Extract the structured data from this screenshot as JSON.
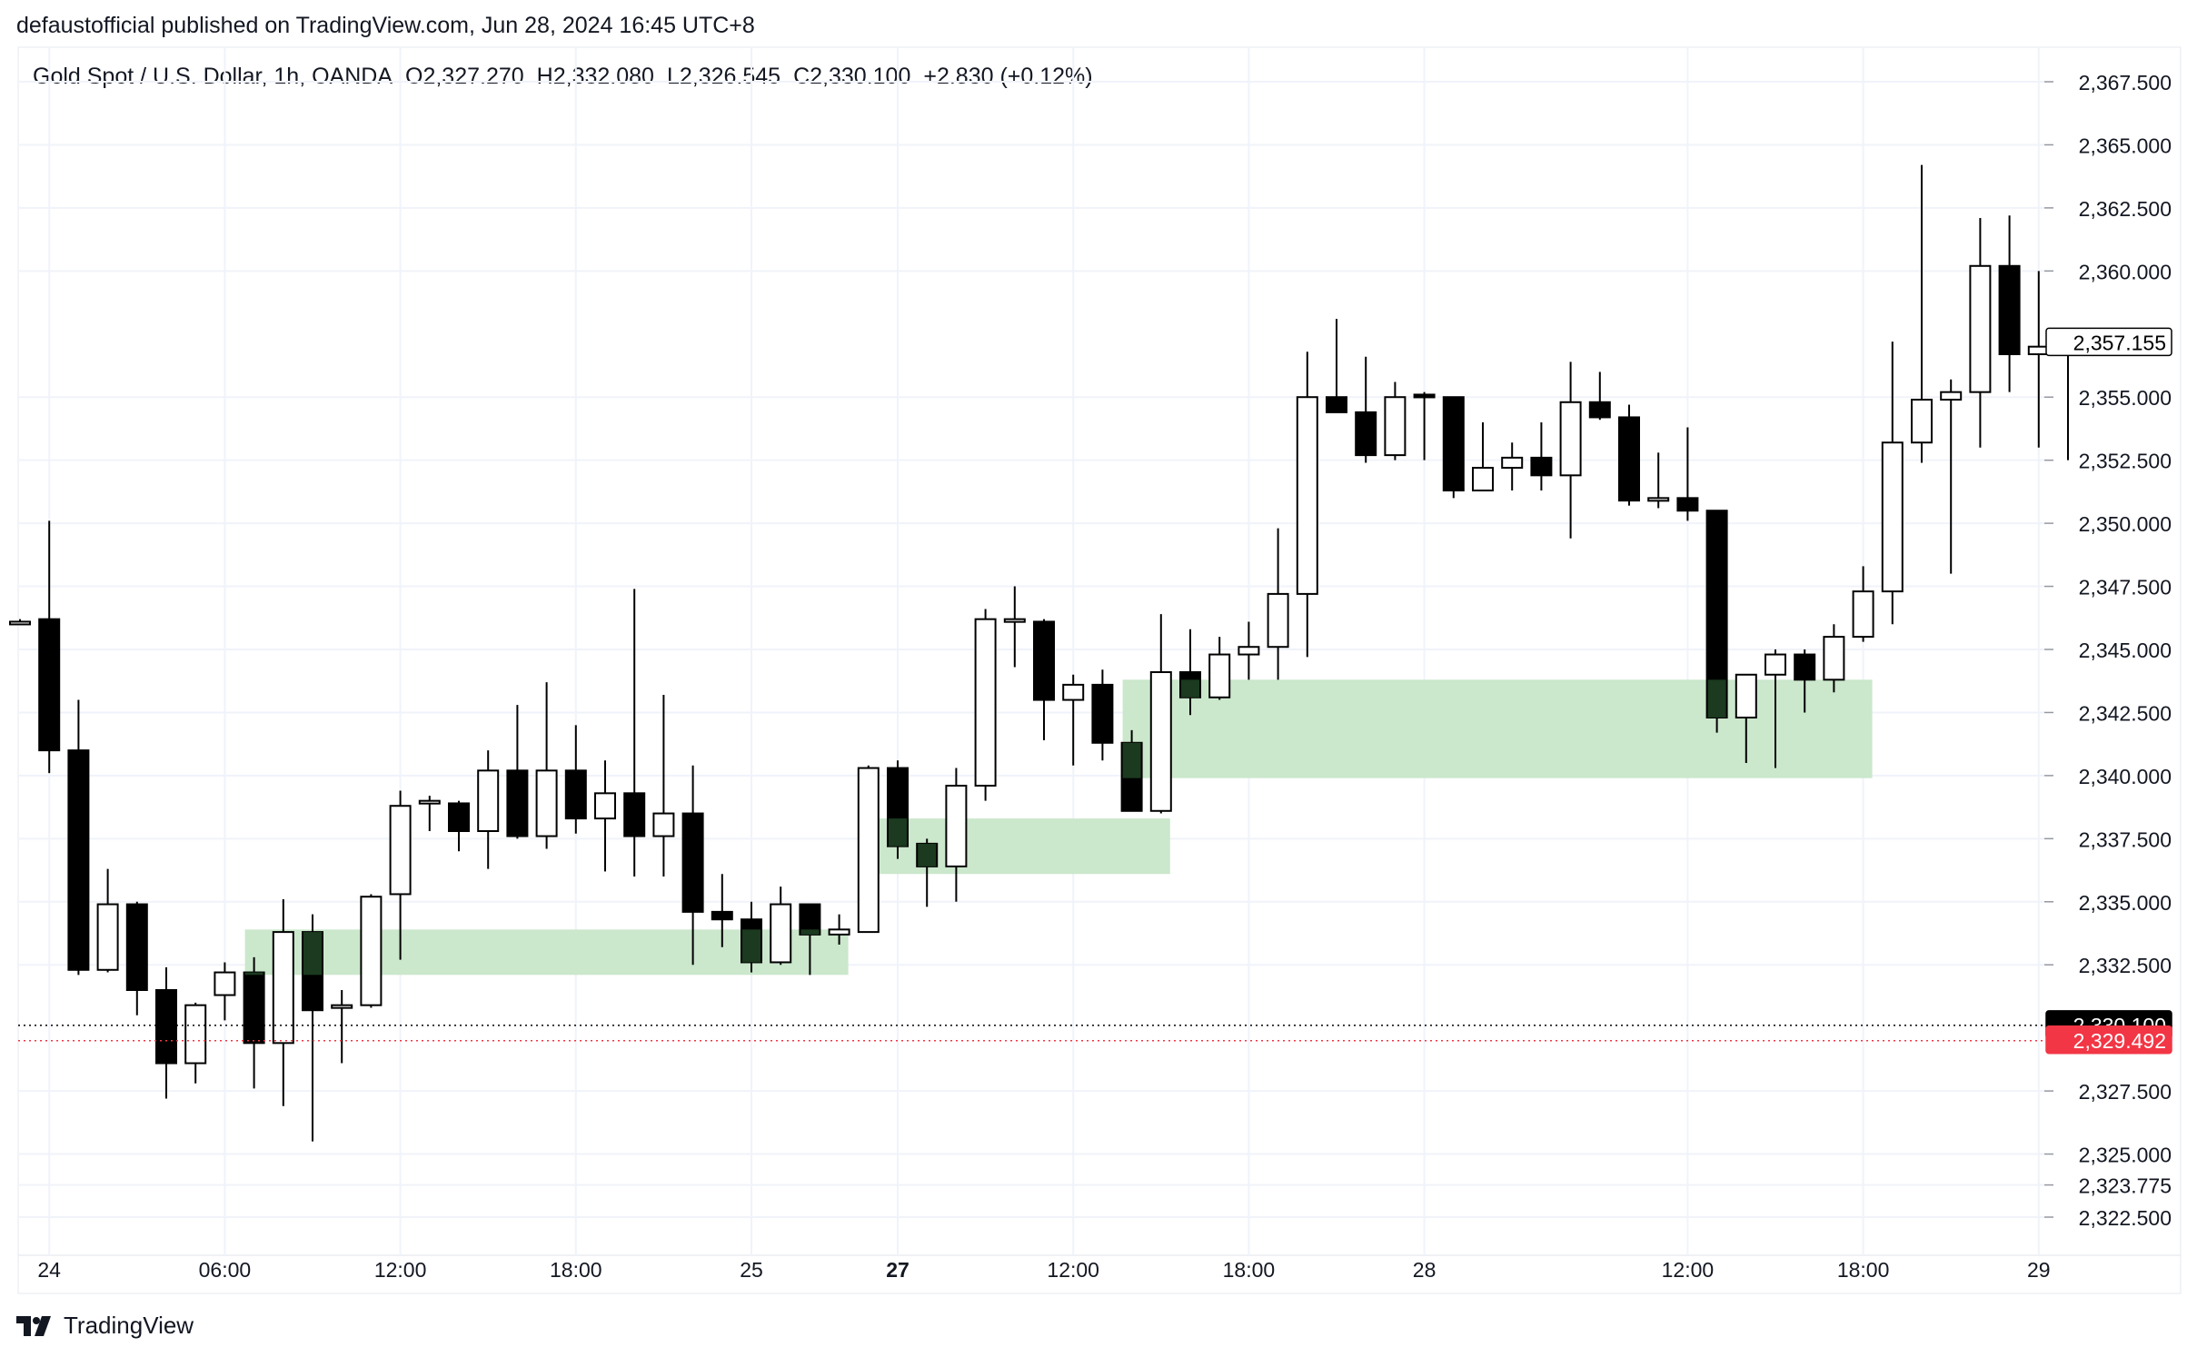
{
  "header": {
    "published_by": "defaustofficial published on TradingView.com, Jun 28, 2024 16:45 UTC+8"
  },
  "symbol_line": {
    "name": "Gold Spot / U.S. Dollar, 1h, OANDA",
    "open": "O2,327.270",
    "high": "H2,332.080",
    "low": "L2,326.545",
    "close": "C2,330.100",
    "change": "+2.830 (+0.12%)"
  },
  "brand": {
    "label": "TradingView",
    "icon": "tradingview-logo-icon"
  },
  "colors": {
    "bull_body": "#ffffff",
    "bear_body": "#000000",
    "zone_fill": "#c8e6c9",
    "zone_overlap": "#1b3a1f",
    "grid": "#f0f3fa",
    "price_label_red": "#f23645"
  },
  "chart_data": {
    "type": "candlestick",
    "y_axis": {
      "ylim": [
        2321.5,
        2369
      ],
      "ticks": [
        "2,367.500",
        "2,365.000",
        "2,362.500",
        "2,360.000",
        "2,355.000",
        "2,352.500",
        "2,350.000",
        "2,347.500",
        "2,345.000",
        "2,342.500",
        "2,340.000",
        "2,337.500",
        "2,335.000",
        "2,332.500",
        "2,327.500",
        "2,325.000",
        "2,323.775",
        "2,322.500"
      ],
      "tick_values": [
        2367.5,
        2365,
        2362.5,
        2360,
        2355,
        2352.5,
        2350,
        2347.5,
        2345,
        2342.5,
        2340,
        2337.5,
        2335,
        2332.5,
        2327.5,
        2325,
        2323.775,
        2322.5
      ]
    },
    "x_axis": {
      "labels": [
        {
          "text": "24",
          "index": 1,
          "bold": false
        },
        {
          "text": "06:00",
          "index": 7,
          "bold": false
        },
        {
          "text": "12:00",
          "index": 13,
          "bold": false
        },
        {
          "text": "18:00",
          "index": 19,
          "bold": false
        },
        {
          "text": "25",
          "index": 25,
          "bold": false
        },
        {
          "text": "27",
          "index": 30,
          "bold": true
        },
        {
          "text": "12:00",
          "index": 36,
          "bold": false
        },
        {
          "text": "18:00",
          "index": 42,
          "bold": false
        },
        {
          "text": "28",
          "index": 48,
          "bold": false
        },
        {
          "text": "12:00",
          "index": 57,
          "bold": false
        },
        {
          "text": "18:00",
          "index": 63,
          "bold": false
        },
        {
          "text": "29",
          "index": 69,
          "bold": false
        }
      ]
    },
    "candles": [
      {
        "i": 0,
        "o": 2346.1,
        "h": 2346.2,
        "l": 2346.0,
        "c": 2346.1
      },
      {
        "i": 1,
        "o": 2346.2,
        "h": 2350.1,
        "l": 2340.1,
        "c": 2341.0
      },
      {
        "i": 2,
        "o": 2341.0,
        "h": 2343.0,
        "l": 2332.1,
        "c": 2332.3
      },
      {
        "i": 3,
        "o": 2332.3,
        "h": 2336.3,
        "l": 2332.2,
        "c": 2334.9
      },
      {
        "i": 4,
        "o": 2334.9,
        "h": 2335.0,
        "l": 2330.5,
        "c": 2331.5
      },
      {
        "i": 5,
        "o": 2331.5,
        "h": 2332.4,
        "l": 2327.2,
        "c": 2328.6
      },
      {
        "i": 6,
        "o": 2328.6,
        "h": 2331.0,
        "l": 2327.8,
        "c": 2330.9
      },
      {
        "i": 7,
        "o": 2331.3,
        "h": 2332.6,
        "l": 2330.3,
        "c": 2332.2
      },
      {
        "i": 8,
        "o": 2332.2,
        "h": 2332.8,
        "l": 2327.6,
        "c": 2329.4
      },
      {
        "i": 9,
        "o": 2329.4,
        "h": 2335.1,
        "l": 2326.9,
        "c": 2333.8
      },
      {
        "i": 10,
        "o": 2333.8,
        "h": 2334.5,
        "l": 2325.5,
        "c": 2330.7
      },
      {
        "i": 11,
        "o": 2330.8,
        "h": 2331.5,
        "l": 2328.6,
        "c": 2330.9
      },
      {
        "i": 12,
        "o": 2330.9,
        "h": 2335.3,
        "l": 2330.8,
        "c": 2335.2
      },
      {
        "i": 13,
        "o": 2335.3,
        "h": 2339.4,
        "l": 2332.7,
        "c": 2338.8
      },
      {
        "i": 14,
        "o": 2338.9,
        "h": 2339.2,
        "l": 2337.8,
        "c": 2339.0
      },
      {
        "i": 15,
        "o": 2338.9,
        "h": 2339.0,
        "l": 2337.0,
        "c": 2337.8
      },
      {
        "i": 16,
        "o": 2337.8,
        "h": 2341.0,
        "l": 2336.3,
        "c": 2340.2
      },
      {
        "i": 17,
        "o": 2340.2,
        "h": 2342.8,
        "l": 2337.5,
        "c": 2337.6
      },
      {
        "i": 18,
        "o": 2337.6,
        "h": 2343.7,
        "l": 2337.1,
        "c": 2340.2
      },
      {
        "i": 19,
        "o": 2340.2,
        "h": 2342.0,
        "l": 2337.7,
        "c": 2338.3
      },
      {
        "i": 20,
        "o": 2338.3,
        "h": 2340.6,
        "l": 2336.2,
        "c": 2339.3
      },
      {
        "i": 21,
        "o": 2339.3,
        "h": 2347.4,
        "l": 2336.0,
        "c": 2337.6
      },
      {
        "i": 22,
        "o": 2337.6,
        "h": 2343.2,
        "l": 2336.0,
        "c": 2338.5
      },
      {
        "i": 23,
        "o": 2338.5,
        "h": 2340.4,
        "l": 2332.5,
        "c": 2334.6
      },
      {
        "i": 24,
        "o": 2334.6,
        "h": 2336.1,
        "l": 2333.2,
        "c": 2334.3
      },
      {
        "i": 25,
        "o": 2334.3,
        "h": 2335.0,
        "l": 2332.2,
        "c": 2332.6
      },
      {
        "i": 26,
        "o": 2332.6,
        "h": 2335.6,
        "l": 2332.5,
        "c": 2334.9
      },
      {
        "i": 27,
        "o": 2334.9,
        "h": 2334.9,
        "l": 2332.1,
        "c": 2333.7
      },
      {
        "i": 28,
        "o": 2333.7,
        "h": 2334.5,
        "l": 2333.3,
        "c": 2333.9
      },
      {
        "i": 29,
        "o": 2333.8,
        "h": 2340.4,
        "l": 2333.8,
        "c": 2340.3
      },
      {
        "i": 30,
        "o": 2340.3,
        "h": 2340.6,
        "l": 2336.7,
        "c": 2337.2
      },
      {
        "i": 31,
        "o": 2337.3,
        "h": 2337.5,
        "l": 2334.8,
        "c": 2336.4
      },
      {
        "i": 32,
        "o": 2336.4,
        "h": 2340.3,
        "l": 2335.0,
        "c": 2339.6
      },
      {
        "i": 33,
        "o": 2339.6,
        "h": 2346.6,
        "l": 2339.0,
        "c": 2346.2
      },
      {
        "i": 34,
        "o": 2346.1,
        "h": 2347.5,
        "l": 2344.3,
        "c": 2346.2
      },
      {
        "i": 35,
        "o": 2346.1,
        "h": 2346.2,
        "l": 2341.4,
        "c": 2343.0
      },
      {
        "i": 36,
        "o": 2343.0,
        "h": 2344.0,
        "l": 2340.4,
        "c": 2343.6
      },
      {
        "i": 37,
        "o": 2343.6,
        "h": 2344.2,
        "l": 2340.6,
        "c": 2341.3
      },
      {
        "i": 38,
        "o": 2341.3,
        "h": 2341.8,
        "l": 2338.8,
        "c": 2338.6
      },
      {
        "i": 39,
        "o": 2338.6,
        "h": 2346.4,
        "l": 2338.5,
        "c": 2344.1
      },
      {
        "i": 40,
        "o": 2344.1,
        "h": 2345.8,
        "l": 2342.4,
        "c": 2343.1
      },
      {
        "i": 41,
        "o": 2343.1,
        "h": 2345.5,
        "l": 2343.0,
        "c": 2344.8
      },
      {
        "i": 42,
        "o": 2344.8,
        "h": 2346.1,
        "l": 2343.8,
        "c": 2345.1
      },
      {
        "i": 43,
        "o": 2345.1,
        "h": 2349.8,
        "l": 2343.8,
        "c": 2347.2
      },
      {
        "i": 44,
        "o": 2347.2,
        "h": 2356.8,
        "l": 2344.7,
        "c": 2355.0
      },
      {
        "i": 45,
        "o": 2355.0,
        "h": 2358.1,
        "l": 2354.4,
        "c": 2354.4
      },
      {
        "i": 46,
        "o": 2354.4,
        "h": 2356.6,
        "l": 2352.4,
        "c": 2352.7
      },
      {
        "i": 47,
        "o": 2352.7,
        "h": 2355.6,
        "l": 2352.5,
        "c": 2355.0
      },
      {
        "i": 48,
        "o": 2355.1,
        "h": 2355.2,
        "l": 2352.5,
        "c": 2355.0
      },
      {
        "i": 49,
        "o": 2355.0,
        "h": 2355.0,
        "l": 2351.0,
        "c": 2351.3
      },
      {
        "i": 50,
        "o": 2351.3,
        "h": 2354.0,
        "l": 2351.3,
        "c": 2352.2
      },
      {
        "i": 51,
        "o": 2352.2,
        "h": 2353.2,
        "l": 2351.3,
        "c": 2352.6
      },
      {
        "i": 52,
        "o": 2352.6,
        "h": 2354.0,
        "l": 2351.3,
        "c": 2351.9
      },
      {
        "i": 53,
        "o": 2351.9,
        "h": 2356.4,
        "l": 2349.4,
        "c": 2354.8
      },
      {
        "i": 54,
        "o": 2354.8,
        "h": 2356.0,
        "l": 2354.1,
        "c": 2354.2
      },
      {
        "i": 55,
        "o": 2354.2,
        "h": 2354.7,
        "l": 2350.7,
        "c": 2350.9
      },
      {
        "i": 56,
        "o": 2350.9,
        "h": 2352.8,
        "l": 2350.6,
        "c": 2351.0
      },
      {
        "i": 57,
        "o": 2351.0,
        "h": 2353.8,
        "l": 2350.1,
        "c": 2350.5
      },
      {
        "i": 58,
        "o": 2350.5,
        "h": 2350.5,
        "l": 2341.7,
        "c": 2342.3
      },
      {
        "i": 59,
        "o": 2342.3,
        "h": 2344.0,
        "l": 2340.5,
        "c": 2344.0
      },
      {
        "i": 60,
        "o": 2344.0,
        "h": 2345.0,
        "l": 2340.3,
        "c": 2344.8
      },
      {
        "i": 61,
        "o": 2344.8,
        "h": 2345.0,
        "l": 2342.5,
        "c": 2343.8
      },
      {
        "i": 62,
        "o": 2343.8,
        "h": 2346.0,
        "l": 2343.3,
        "c": 2345.5
      },
      {
        "i": 63,
        "o": 2345.5,
        "h": 2348.3,
        "l": 2345.3,
        "c": 2347.3
      },
      {
        "i": 64,
        "o": 2347.3,
        "h": 2357.2,
        "l": 2346.0,
        "c": 2353.2
      },
      {
        "i": 65,
        "o": 2353.2,
        "h": 2364.2,
        "l": 2352.4,
        "c": 2354.9
      },
      {
        "i": 66,
        "o": 2354.9,
        "h": 2355.7,
        "l": 2348.0,
        "c": 2355.2
      },
      {
        "i": 67,
        "o": 2355.2,
        "h": 2362.1,
        "l": 2353.0,
        "c": 2360.2
      },
      {
        "i": 68,
        "o": 2360.2,
        "h": 2362.2,
        "l": 2355.2,
        "c": 2356.7
      },
      {
        "i": 69,
        "o": 2356.7,
        "h": 2360.0,
        "l": 2353.0,
        "c": 2357.0
      },
      {
        "i": 70,
        "o": 2357.0,
        "h": 2357.2,
        "l": 2352.5,
        "c": 2357.2
      }
    ],
    "zones": [
      {
        "from": 8,
        "to": 28,
        "top": 2333.9,
        "bottom": 2332.1
      },
      {
        "from": 29,
        "to": 39,
        "top": 2338.3,
        "bottom": 2336.1
      },
      {
        "from": 38,
        "to": 63,
        "top": 2343.8,
        "bottom": 2339.9
      }
    ],
    "price_labels": [
      {
        "text": "2,357.155",
        "value": 2357.155,
        "style": "outline"
      },
      {
        "text": "2,330.100",
        "value": 2330.1,
        "style": "black"
      },
      {
        "text": "2,329.492",
        "value": 2329.492,
        "style": "red"
      }
    ],
    "price_lines": [
      2330.1,
      2329.492
    ]
  }
}
